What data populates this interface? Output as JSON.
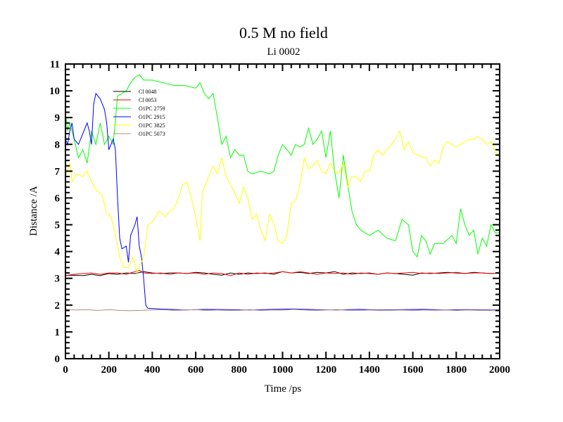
{
  "chart_data": {
    "type": "line",
    "title": "0.5 M no field",
    "subtitle": "Li 0002",
    "xlabel": "Time /ps",
    "ylabel": "Distance /A",
    "xlim": [
      0,
      2000
    ],
    "ylim": [
      0,
      11
    ],
    "xticks": [
      0,
      200,
      400,
      600,
      800,
      1000,
      1200,
      1400,
      1600,
      1800,
      2000
    ],
    "yticks": [
      0,
      1,
      2,
      3,
      4,
      5,
      6,
      7,
      8,
      9,
      10,
      11
    ],
    "x_minor_step": 40,
    "y_minor_step": 0.2,
    "grid": false,
    "legend_position": "top-left",
    "series": [
      {
        "name": "Cl 0048",
        "color": "#000000",
        "x": [
          0,
          40,
          80,
          120,
          160,
          200,
          240,
          280,
          320,
          360,
          400,
          440,
          480,
          520,
          560,
          600,
          640,
          680,
          720,
          760,
          800,
          840,
          880,
          920,
          960,
          1000,
          1040,
          1080,
          1120,
          1160,
          1200,
          1240,
          1280,
          1320,
          1360,
          1400,
          1440,
          1480,
          1520,
          1560,
          1600,
          1640,
          1680,
          1720,
          1760,
          1800,
          1840,
          1880,
          1920,
          1960,
          2000
        ],
        "y": [
          3.1,
          3.12,
          3.1,
          3.15,
          3.1,
          3.18,
          3.15,
          3.2,
          3.18,
          3.25,
          3.2,
          3.18,
          3.2,
          3.2,
          3.18,
          3.22,
          3.2,
          3.15,
          3.12,
          3.2,
          3.15,
          3.2,
          3.18,
          3.2,
          3.15,
          3.25,
          3.2,
          3.22,
          3.18,
          3.22,
          3.2,
          3.25,
          3.15,
          3.2,
          3.18,
          3.2,
          3.15,
          3.2,
          3.18,
          3.15,
          3.12,
          3.2,
          3.18,
          3.2,
          3.22,
          3.2,
          3.18,
          3.22,
          3.2,
          3.18,
          3.2
        ]
      },
      {
        "name": "Cl 0053",
        "color": "#ff0000",
        "x": [
          0,
          40,
          80,
          120,
          160,
          200,
          240,
          280,
          320,
          340,
          360,
          400,
          440,
          480,
          520,
          560,
          600,
          640,
          680,
          720,
          760,
          800,
          840,
          880,
          920,
          960,
          1000,
          1040,
          1080,
          1120,
          1160,
          1200,
          1240,
          1280,
          1320,
          1360,
          1400,
          1440,
          1480,
          1520,
          1560,
          1600,
          1640,
          1680,
          1720,
          1760,
          1800,
          1840,
          1880,
          1920,
          1960,
          2000
        ],
        "y": [
          3.1,
          3.15,
          3.18,
          3.2,
          3.15,
          3.2,
          3.2,
          3.15,
          3.25,
          3.3,
          3.2,
          3.18,
          3.2,
          3.15,
          3.2,
          3.18,
          3.2,
          3.15,
          3.2,
          3.18,
          3.1,
          3.2,
          3.15,
          3.2,
          3.18,
          3.2,
          3.25,
          3.2,
          3.25,
          3.2,
          3.15,
          3.2,
          3.18,
          3.2,
          3.15,
          3.2,
          3.18,
          3.15,
          3.2,
          3.18,
          3.2,
          3.22,
          3.18,
          3.2,
          3.18,
          3.2,
          3.22,
          3.18,
          3.2,
          3.2,
          3.18,
          3.2
        ]
      },
      {
        "name": "O1PC 2759",
        "color": "#00ff00",
        "x": [
          0,
          10,
          20,
          40,
          60,
          80,
          100,
          120,
          140,
          160,
          180,
          200,
          220,
          240,
          260,
          280,
          300,
          320,
          340,
          360,
          400,
          450,
          500,
          550,
          600,
          620,
          640,
          660,
          680,
          700,
          720,
          740,
          760,
          780,
          800,
          820,
          840,
          860,
          900,
          940,
          960,
          980,
          1000,
          1040,
          1060,
          1080,
          1100,
          1120,
          1140,
          1160,
          1180,
          1200,
          1220,
          1240,
          1260,
          1280,
          1300,
          1320,
          1340,
          1360,
          1400,
          1440,
          1480,
          1520,
          1550,
          1580,
          1600,
          1620,
          1640,
          1660,
          1680,
          1700,
          1740,
          1780,
          1800,
          1820,
          1840,
          1860,
          1880,
          1900,
          1920,
          1940,
          1960,
          1980,
          2000
        ],
        "y": [
          9.2,
          8.5,
          8.8,
          8.2,
          7.5,
          7.8,
          7.3,
          8.5,
          8.0,
          8.8,
          8.0,
          8.3,
          8.0,
          9.8,
          9.9,
          10.0,
          10.3,
          10.5,
          10.6,
          10.4,
          10.4,
          10.3,
          10.2,
          10.2,
          10.1,
          10.3,
          9.9,
          9.7,
          9.9,
          9.0,
          8.0,
          8.3,
          7.5,
          7.8,
          7.6,
          7.6,
          7.0,
          6.9,
          7.0,
          6.9,
          7.0,
          7.6,
          8.0,
          7.6,
          8.0,
          7.9,
          8.0,
          8.6,
          8.0,
          8.2,
          8.5,
          7.5,
          8.5,
          7.0,
          6.0,
          7.6,
          6.5,
          5.5,
          5.0,
          4.8,
          4.6,
          4.8,
          4.5,
          4.4,
          5.2,
          5.0,
          4.0,
          3.8,
          4.6,
          4.4,
          3.9,
          4.3,
          4.3,
          4.6,
          4.3,
          5.6,
          5.0,
          4.6,
          4.8,
          3.9,
          4.5,
          4.2,
          5.0,
          4.7,
          4.7
        ]
      },
      {
        "name": "O1PC 2915",
        "color": "#0000ff",
        "x": [
          0,
          10,
          20,
          30,
          40,
          60,
          80,
          100,
          110,
          120,
          130,
          140,
          160,
          180,
          190,
          200,
          220,
          230,
          240,
          250,
          260,
          280,
          290,
          300,
          320,
          330,
          340,
          350,
          360,
          370,
          380,
          450,
          550,
          650,
          750,
          850,
          950,
          1050,
          1150,
          1250,
          1350,
          1450,
          1550,
          1650,
          1750,
          1850,
          1950,
          2000
        ],
        "y": [
          8.2,
          8.0,
          8.5,
          8.8,
          8.2,
          8.0,
          8.4,
          8.8,
          8.5,
          8.0,
          9.5,
          9.9,
          9.7,
          9.3,
          8.8,
          7.8,
          8.2,
          7.8,
          6.0,
          4.5,
          4.1,
          4.2,
          3.6,
          4.6,
          5.0,
          5.3,
          4.2,
          3.8,
          3.0,
          2.0,
          1.88,
          1.85,
          1.82,
          1.84,
          1.83,
          1.82,
          1.84,
          1.86,
          1.83,
          1.82,
          1.84,
          1.82,
          1.83,
          1.84,
          1.82,
          1.83,
          1.82,
          1.82
        ]
      },
      {
        "name": "O1PC 3825",
        "color": "#ffff00",
        "x": [
          0,
          20,
          30,
          50,
          80,
          100,
          120,
          140,
          170,
          190,
          210,
          230,
          250,
          270,
          290,
          310,
          330,
          360,
          380,
          400,
          430,
          460,
          480,
          500,
          520,
          540,
          560,
          580,
          600,
          620,
          630,
          660,
          680,
          700,
          720,
          740,
          760,
          780,
          800,
          820,
          840,
          860,
          880,
          900,
          920,
          940,
          960,
          980,
          1000,
          1020,
          1040,
          1060,
          1080,
          1100,
          1120,
          1140,
          1160,
          1180,
          1200,
          1220,
          1240,
          1260,
          1280,
          1300,
          1320,
          1340,
          1360,
          1380,
          1400,
          1420,
          1440,
          1460,
          1480,
          1500,
          1520,
          1540,
          1560,
          1580,
          1600,
          1620,
          1660,
          1680,
          1700,
          1720,
          1740,
          1760,
          1780,
          1800,
          1820,
          1840,
          1860,
          1880,
          1900,
          1920,
          1940,
          1960,
          1980,
          2000
        ],
        "y": [
          6.8,
          7.3,
          6.6,
          6.9,
          6.8,
          7.0,
          6.6,
          6.3,
          6.1,
          5.4,
          5.3,
          4.6,
          3.8,
          3.4,
          3.4,
          3.8,
          3.2,
          3.8,
          5.0,
          5.1,
          5.5,
          5.3,
          5.5,
          5.6,
          6.0,
          6.5,
          6.6,
          6.0,
          5.3,
          4.4,
          6.2,
          6.8,
          7.2,
          6.9,
          7.5,
          6.8,
          6.5,
          6.2,
          5.8,
          6.4,
          6.0,
          5.2,
          5.4,
          4.8,
          4.4,
          5.4,
          5.0,
          4.4,
          4.3,
          4.6,
          5.8,
          5.9,
          6.5,
          7.5,
          7.1,
          7.2,
          7.4,
          7.0,
          6.9,
          7.3,
          7.0,
          6.9,
          7.3,
          6.4,
          6.8,
          6.8,
          6.6,
          7.0,
          7.0,
          7.6,
          7.8,
          7.6,
          7.8,
          8.0,
          8.2,
          8.5,
          7.8,
          8.1,
          7.7,
          7.6,
          7.5,
          7.2,
          7.4,
          7.3,
          7.9,
          8.1,
          8.0,
          7.9,
          8.0,
          8.1,
          8.2,
          8.2,
          8.3,
          8.2,
          8.0,
          8.1,
          7.7,
          7.6
        ]
      },
      {
        "name": "O1PC 5073",
        "color": "#b08c80",
        "x": [
          0,
          50,
          100,
          150,
          200,
          250,
          300,
          350,
          400,
          450,
          500,
          550,
          600,
          650,
          700,
          750,
          800,
          850,
          900,
          950,
          1000,
          1050,
          1100,
          1150,
          1200,
          1250,
          1300,
          1350,
          1400,
          1450,
          1500,
          1550,
          1600,
          1650,
          1700,
          1750,
          1800,
          1850,
          1900,
          1950,
          2000
        ],
        "y": [
          1.84,
          1.82,
          1.83,
          1.8,
          1.83,
          1.8,
          1.79,
          1.8,
          1.82,
          1.83,
          1.8,
          1.82,
          1.83,
          1.8,
          1.82,
          1.8,
          1.81,
          1.83,
          1.8,
          1.82,
          1.81,
          1.84,
          1.82,
          1.8,
          1.82,
          1.83,
          1.81,
          1.8,
          1.82,
          1.8,
          1.81,
          1.82,
          1.8,
          1.82,
          1.81,
          1.82,
          1.8,
          1.82,
          1.81,
          1.8,
          1.81
        ]
      }
    ]
  }
}
